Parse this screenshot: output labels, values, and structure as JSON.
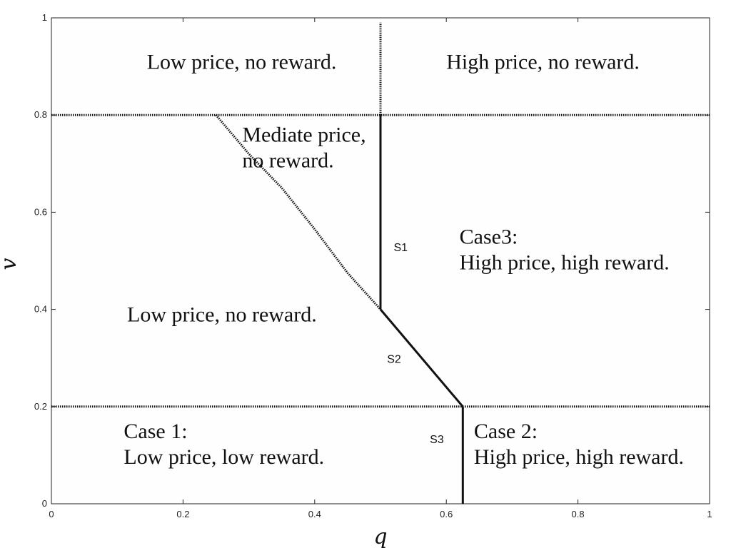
{
  "chart_data": {
    "type": "line",
    "xlabel": "q",
    "ylabel": "v",
    "xlim": [
      0,
      1
    ],
    "ylim": [
      0,
      1
    ],
    "x_ticks": [
      0,
      0.2,
      0.4,
      0.6,
      0.8,
      1
    ],
    "y_ticks": [
      0,
      0.2,
      0.4,
      0.6,
      0.8,
      1
    ],
    "x_tick_labels": [
      "0",
      "0.2",
      "0.4",
      "0.6",
      "0.8",
      "1"
    ],
    "y_tick_labels": [
      "0",
      "0.2",
      "0.4",
      "0.6",
      "0.8",
      "1"
    ],
    "grid": false,
    "lines": [
      {
        "style": "dotted",
        "points": [
          [
            0,
            0.8
          ],
          [
            1,
            0.8
          ]
        ]
      },
      {
        "style": "dotted",
        "points": [
          [
            0,
            0.2
          ],
          [
            1,
            0.2
          ]
        ]
      },
      {
        "style": "dotted",
        "points": [
          [
            0.5,
            0.8
          ],
          [
            0.5,
            0.99
          ]
        ]
      },
      {
        "style": "dotted",
        "points": [
          [
            0.25,
            0.8
          ],
          [
            0.3,
            0.72
          ],
          [
            0.35,
            0.65
          ],
          [
            0.4,
            0.565
          ],
          [
            0.45,
            0.475
          ],
          [
            0.5,
            0.4
          ]
        ]
      },
      {
        "name": "S1",
        "style": "solid",
        "points": [
          [
            0.5,
            0.4
          ],
          [
            0.5,
            0.8
          ]
        ]
      },
      {
        "name": "S2",
        "style": "solid",
        "points": [
          [
            0.5,
            0.4
          ],
          [
            0.625,
            0.2
          ]
        ]
      },
      {
        "name": "S3",
        "style": "solid",
        "points": [
          [
            0.625,
            0
          ],
          [
            0.625,
            0.2
          ]
        ]
      }
    ],
    "segment_labels": [
      {
        "text": "S1",
        "x": 0.52,
        "y": 0.52
      },
      {
        "text": "S2",
        "x": 0.51,
        "y": 0.29
      },
      {
        "text": "S3",
        "x": 0.575,
        "y": 0.125
      }
    ],
    "region_labels": [
      {
        "lines": [
          "Low price, no reward."
        ],
        "x": 0.145,
        "y": 0.895
      },
      {
        "lines": [
          "High price, no reward."
        ],
        "x": 0.6,
        "y": 0.895
      },
      {
        "lines": [
          "Mediate price,",
          "no reward."
        ],
        "x": 0.29,
        "y": 0.745
      },
      {
        "lines": [
          "Case3:",
          "High price, high reward."
        ],
        "x": 0.62,
        "y": 0.535
      },
      {
        "lines": [
          "Low price, no reward."
        ],
        "x": 0.115,
        "y": 0.375
      },
      {
        "lines": [
          "Case 1:",
          "Low price, low reward."
        ],
        "x": 0.11,
        "y": 0.135
      },
      {
        "lines": [
          "Case 2:",
          "High price, high reward."
        ],
        "x": 0.642,
        "y": 0.135
      }
    ]
  }
}
